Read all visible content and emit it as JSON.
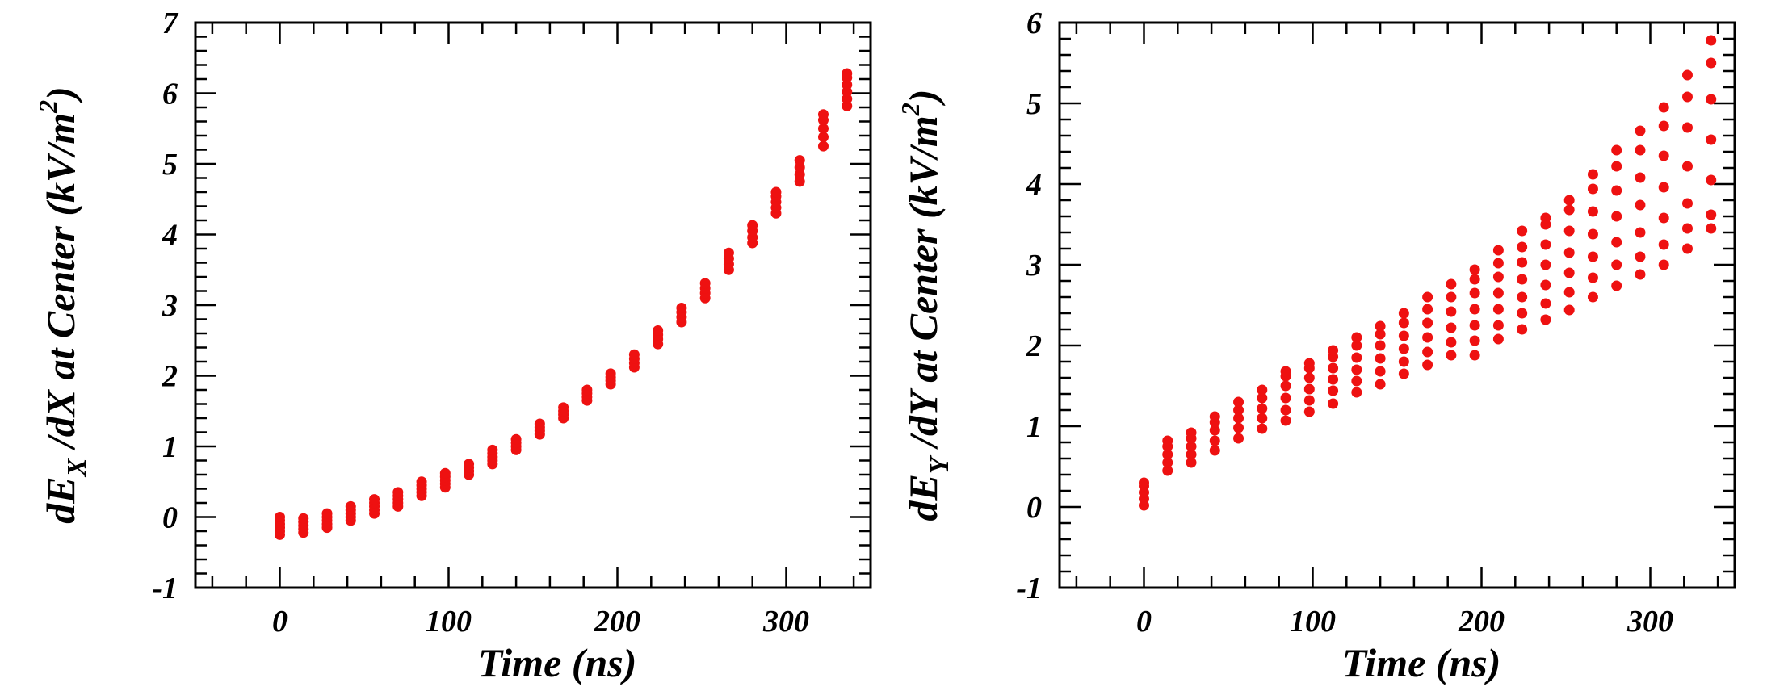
{
  "chart_data": [
    {
      "type": "scatter",
      "xlabel": "Time (ns)",
      "ylabel": {
        "prefix": "dE",
        "sub": "X",
        "middle": " /dX at Center (kV/m",
        "sup": "2",
        "suffix": ")"
      },
      "xlim": [
        -50,
        350
      ],
      "ylim": [
        -1,
        7
      ],
      "xticks": [
        "0",
        "100",
        "200",
        "300"
      ],
      "xtick_values": [
        0,
        100,
        200,
        300
      ],
      "yticks": [
        "-1",
        "0",
        "1",
        "2",
        "3",
        "4",
        "5",
        "6",
        "7"
      ],
      "ytick_values": [
        -1,
        0,
        1,
        2,
        3,
        4,
        5,
        6,
        7
      ],
      "marker_color": "#ee1111",
      "columns": [
        {
          "x": 0,
          "y": [
            -0.25,
            -0.2,
            -0.15,
            -0.1,
            -0.05,
            0.0
          ]
        },
        {
          "x": 14,
          "y": [
            -0.22,
            -0.17,
            -0.12,
            -0.07,
            -0.02
          ]
        },
        {
          "x": 28,
          "y": [
            -0.15,
            -0.1,
            -0.05,
            0.0,
            0.05
          ]
        },
        {
          "x": 42,
          "y": [
            -0.05,
            0.0,
            0.05,
            0.1,
            0.15
          ]
        },
        {
          "x": 56,
          "y": [
            0.05,
            0.1,
            0.15,
            0.2,
            0.25
          ]
        },
        {
          "x": 70,
          "y": [
            0.15,
            0.2,
            0.25,
            0.3,
            0.35
          ]
        },
        {
          "x": 84,
          "y": [
            0.3,
            0.35,
            0.4,
            0.45,
            0.5
          ]
        },
        {
          "x": 98,
          "y": [
            0.42,
            0.47,
            0.52,
            0.57,
            0.62
          ]
        },
        {
          "x": 112,
          "y": [
            0.6,
            0.65,
            0.7,
            0.75
          ]
        },
        {
          "x": 126,
          "y": [
            0.75,
            0.8,
            0.85,
            0.9,
            0.95
          ]
        },
        {
          "x": 140,
          "y": [
            0.95,
            1.0,
            1.05,
            1.1
          ]
        },
        {
          "x": 154,
          "y": [
            1.17,
            1.22,
            1.27,
            1.32
          ]
        },
        {
          "x": 168,
          "y": [
            1.4,
            1.45,
            1.5,
            1.55
          ]
        },
        {
          "x": 182,
          "y": [
            1.65,
            1.7,
            1.75,
            1.8
          ]
        },
        {
          "x": 196,
          "y": [
            1.88,
            1.93,
            1.98,
            2.03
          ]
        },
        {
          "x": 210,
          "y": [
            2.12,
            2.18,
            2.24,
            2.3
          ]
        },
        {
          "x": 224,
          "y": [
            2.45,
            2.52,
            2.58,
            2.64
          ]
        },
        {
          "x": 238,
          "y": [
            2.76,
            2.83,
            2.9,
            2.96
          ]
        },
        {
          "x": 252,
          "y": [
            3.1,
            3.17,
            3.24,
            3.31
          ]
        },
        {
          "x": 266,
          "y": [
            3.5,
            3.58,
            3.66,
            3.74
          ]
        },
        {
          "x": 280,
          "y": [
            3.88,
            3.96,
            4.05,
            4.13
          ]
        },
        {
          "x": 294,
          "y": [
            4.3,
            4.38,
            4.46,
            4.54,
            4.6
          ]
        },
        {
          "x": 308,
          "y": [
            4.75,
            4.85,
            4.95,
            5.05
          ]
        },
        {
          "x": 322,
          "y": [
            5.25,
            5.38,
            5.5,
            5.62,
            5.7
          ]
        },
        {
          "x": 336,
          "y": [
            5.82,
            5.92,
            6.02,
            6.12,
            6.22,
            6.28
          ]
        }
      ]
    },
    {
      "type": "scatter",
      "xlabel": "Time (ns)",
      "ylabel": {
        "prefix": "dE",
        "sub": "Y",
        "middle": " /dY at Center (kV/m",
        "sup": "2",
        "suffix": ")"
      },
      "xlim": [
        -50,
        350
      ],
      "ylim": [
        -1,
        6
      ],
      "xticks": [
        "0",
        "100",
        "200",
        "300"
      ],
      "xtick_values": [
        0,
        100,
        200,
        300
      ],
      "yticks": [
        "-1",
        "0",
        "1",
        "2",
        "3",
        "4",
        "5",
        "6"
      ],
      "ytick_values": [
        -1,
        0,
        1,
        2,
        3,
        4,
        5,
        6
      ],
      "marker_color": "#ee1111",
      "columns": [
        {
          "x": 0,
          "y": [
            0.02,
            0.1,
            0.18,
            0.26,
            0.3
          ]
        },
        {
          "x": 14,
          "y": [
            0.45,
            0.55,
            0.65,
            0.75,
            0.82
          ]
        },
        {
          "x": 28,
          "y": [
            0.55,
            0.65,
            0.75,
            0.85,
            0.92
          ]
        },
        {
          "x": 42,
          "y": [
            0.7,
            0.82,
            0.95,
            1.05,
            1.12
          ]
        },
        {
          "x": 56,
          "y": [
            0.85,
            0.98,
            1.1,
            1.2,
            1.3
          ]
        },
        {
          "x": 70,
          "y": [
            0.97,
            1.1,
            1.22,
            1.35,
            1.45
          ]
        },
        {
          "x": 84,
          "y": [
            1.07,
            1.2,
            1.35,
            1.5,
            1.62,
            1.68
          ]
        },
        {
          "x": 98,
          "y": [
            1.18,
            1.32,
            1.46,
            1.6,
            1.72,
            1.78
          ]
        },
        {
          "x": 112,
          "y": [
            1.28,
            1.44,
            1.58,
            1.72,
            1.86,
            1.94
          ]
        },
        {
          "x": 126,
          "y": [
            1.42,
            1.56,
            1.7,
            1.85,
            2.0,
            2.1
          ]
        },
        {
          "x": 140,
          "y": [
            1.52,
            1.68,
            1.84,
            2.0,
            2.14,
            2.24
          ]
        },
        {
          "x": 154,
          "y": [
            1.65,
            1.8,
            1.96,
            2.12,
            2.28,
            2.4
          ]
        },
        {
          "x": 168,
          "y": [
            1.76,
            1.92,
            2.1,
            2.28,
            2.45,
            2.6
          ]
        },
        {
          "x": 182,
          "y": [
            1.88,
            2.04,
            2.22,
            2.42,
            2.6,
            2.76
          ]
        },
        {
          "x": 196,
          "y": [
            1.88,
            2.06,
            2.25,
            2.45,
            2.65,
            2.82,
            2.94
          ]
        },
        {
          "x": 210,
          "y": [
            2.08,
            2.25,
            2.45,
            2.65,
            2.85,
            3.02,
            3.18
          ]
        },
        {
          "x": 224,
          "y": [
            2.2,
            2.4,
            2.6,
            2.82,
            3.03,
            3.22,
            3.42
          ]
        },
        {
          "x": 238,
          "y": [
            2.32,
            2.52,
            2.75,
            3.0,
            3.25,
            3.5,
            3.58
          ]
        },
        {
          "x": 252,
          "y": [
            2.44,
            2.66,
            2.9,
            3.15,
            3.42,
            3.68,
            3.8
          ]
        },
        {
          "x": 266,
          "y": [
            2.6,
            2.84,
            3.1,
            3.38,
            3.66,
            3.94,
            4.12
          ]
        },
        {
          "x": 280,
          "y": [
            2.74,
            3.0,
            3.28,
            3.6,
            3.92,
            4.22,
            4.42
          ]
        },
        {
          "x": 294,
          "y": [
            2.88,
            3.1,
            3.4,
            3.74,
            4.08,
            4.42,
            4.66
          ]
        },
        {
          "x": 308,
          "y": [
            3.0,
            3.25,
            3.58,
            3.96,
            4.35,
            4.72,
            4.95
          ]
        },
        {
          "x": 322,
          "y": [
            3.2,
            3.45,
            3.76,
            4.22,
            4.7,
            5.08,
            5.35
          ]
        },
        {
          "x": 336,
          "y": [
            3.45,
            3.62,
            4.05,
            4.55,
            5.05,
            5.5,
            5.78
          ]
        }
      ]
    }
  ]
}
